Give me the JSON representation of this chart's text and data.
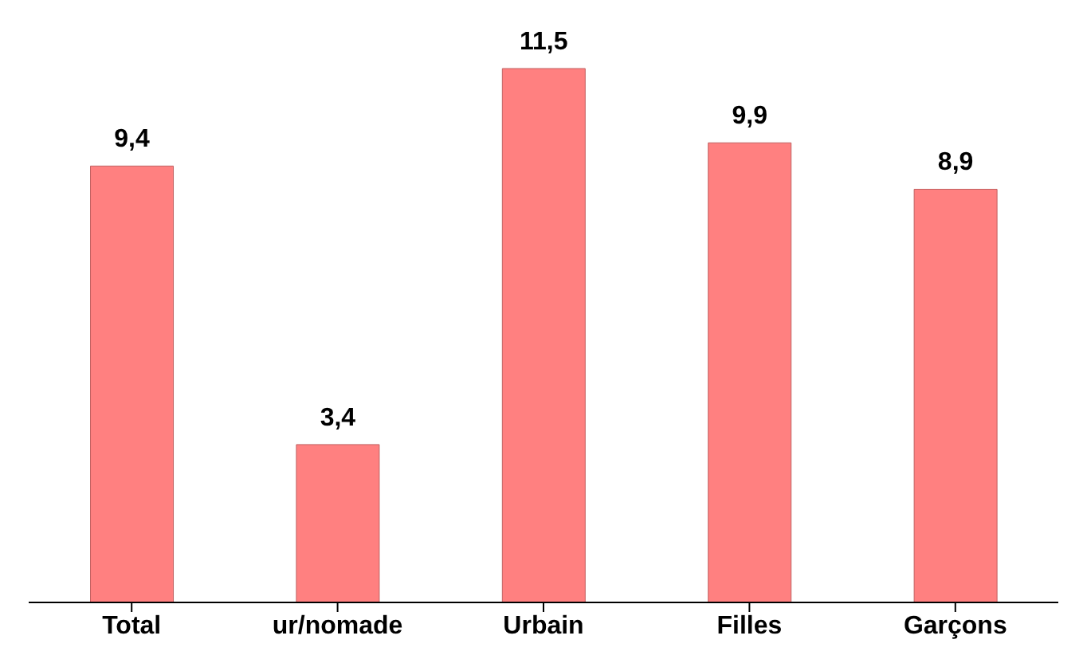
{
  "chart_data": {
    "type": "bar",
    "categories": [
      "Total",
      "ur/nomade",
      "Urbain",
      "Filles",
      "Garçons"
    ],
    "values": [
      9.4,
      3.4,
      11.5,
      9.9,
      8.9
    ],
    "value_labels": [
      "9,4",
      "3,4",
      "11,5",
      "9,9",
      "8,9"
    ],
    "color": "#ff8080",
    "grid": false
  }
}
